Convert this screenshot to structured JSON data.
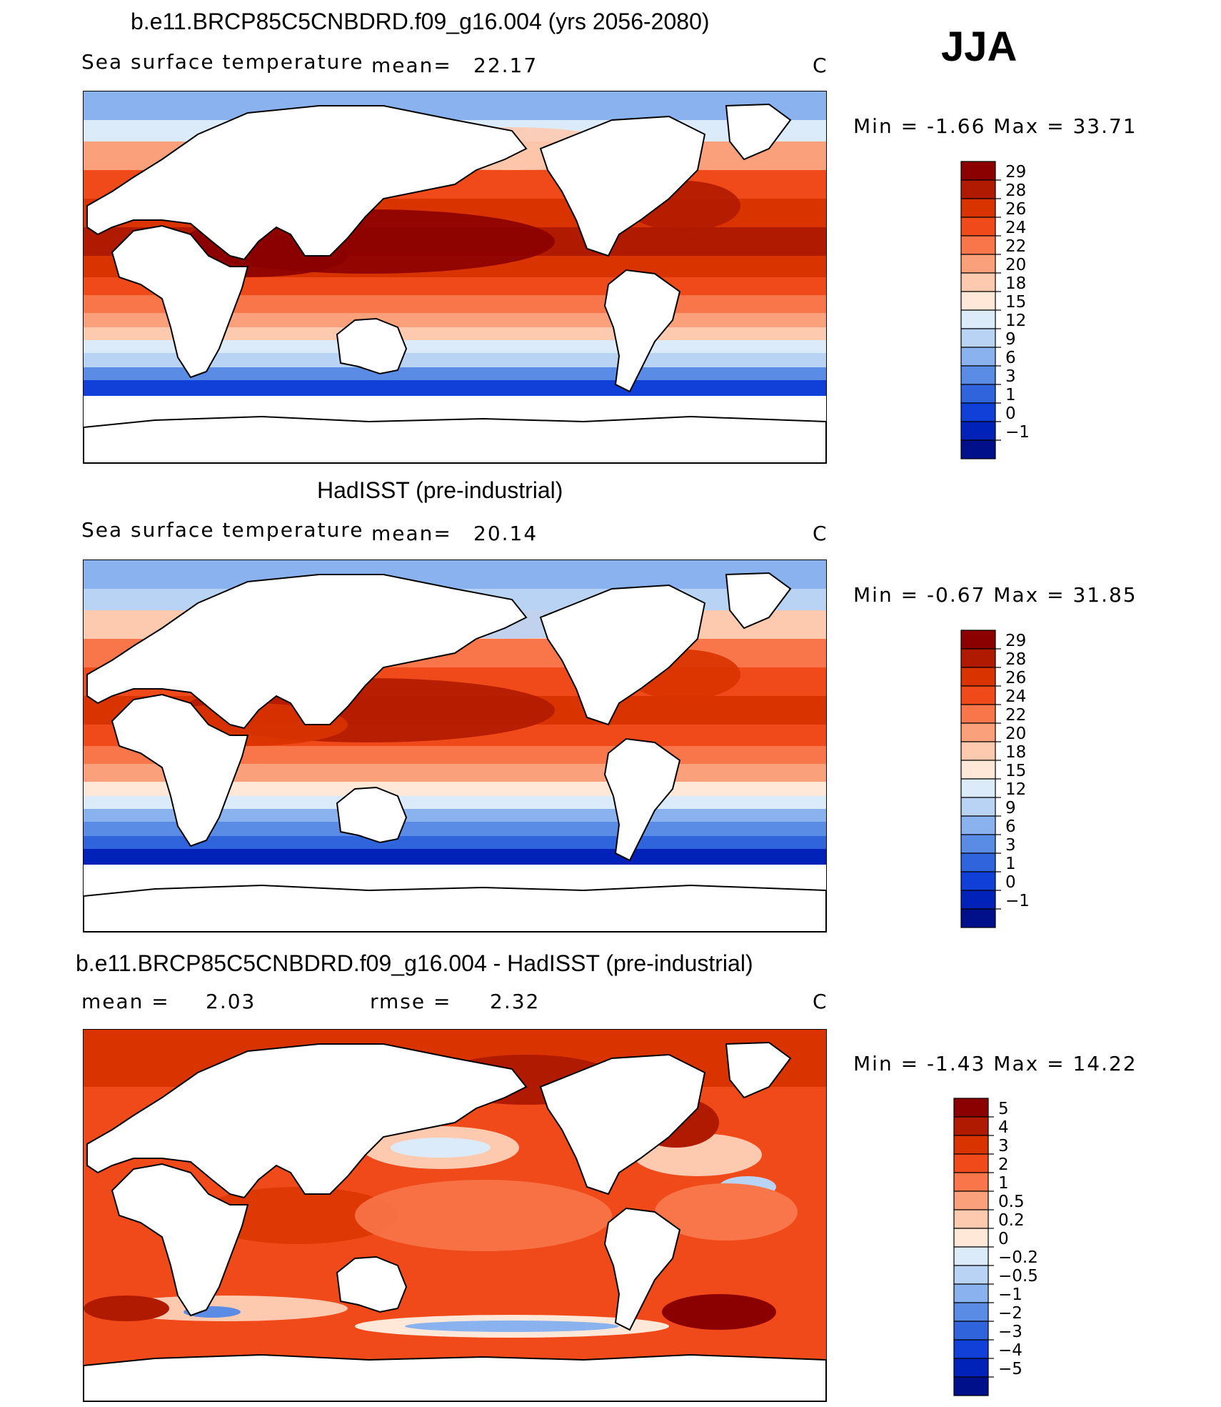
{
  "season": "JJA",
  "panels": [
    {
      "title": "b.e11.BRCP85C5CNBDRD.f09_g16.004 (yrs 2056-2080)",
      "left_label": "Sea surface temperature",
      "stat1_label": "mean=",
      "stat1_value": "22.17",
      "stat2_label": "",
      "stat2_value": "",
      "units": "C",
      "range_text": "Min = -1.66 Max = 33.71",
      "colorbar": {
        "labels": [
          "29",
          "28",
          "26",
          "24",
          "22",
          "20",
          "18",
          "15",
          "12",
          "9",
          "6",
          "3",
          "1",
          "0",
          "−1"
        ],
        "colors": [
          "#8B0000",
          "#B01A00",
          "#D93300",
          "#F04A1A",
          "#F8764A",
          "#FAA07A",
          "#FDCAB0",
          "#FFE8D8",
          "#DCEBFA",
          "#B9D3F5",
          "#8AB2EE",
          "#5A8CE6",
          "#3064DD",
          "#1040D8",
          "#0022B8",
          "#00108A"
        ]
      },
      "map_kind": "model"
    },
    {
      "title": "HadISST (pre-industrial)",
      "left_label": "Sea surface temperature",
      "stat1_label": "mean=",
      "stat1_value": "20.14",
      "stat2_label": "",
      "stat2_value": "",
      "units": "C",
      "range_text": "Min = -0.67 Max = 31.85",
      "colorbar": {
        "labels": [
          "29",
          "28",
          "26",
          "24",
          "22",
          "20",
          "18",
          "15",
          "12",
          "9",
          "6",
          "3",
          "1",
          "0",
          "−1"
        ],
        "colors": [
          "#8B0000",
          "#B01A00",
          "#D93300",
          "#F04A1A",
          "#F8764A",
          "#FAA07A",
          "#FDCAB0",
          "#FFE8D8",
          "#DCEBFA",
          "#B9D3F5",
          "#8AB2EE",
          "#5A8CE6",
          "#3064DD",
          "#1040D8",
          "#0022B8",
          "#00108A"
        ]
      },
      "map_kind": "obs"
    },
    {
      "title": "b.e11.BRCP85C5CNBDRD.f09_g16.004 - HadISST (pre-industrial)",
      "left_label": "",
      "stat1_label": "mean =",
      "stat1_value": "2.03",
      "stat2_label": "rmse =",
      "stat2_value": "2.32",
      "units": "C",
      "range_text": "Min = -1.43 Max = 14.22",
      "colorbar": {
        "labels": [
          "5",
          "4",
          "3",
          "2",
          "1",
          "0.5",
          "0.2",
          "0",
          "−0.2",
          "−0.5",
          "−1",
          "−2",
          "−3",
          "−4",
          "−5"
        ],
        "colors": [
          "#8B0000",
          "#B01A00",
          "#D93300",
          "#F04A1A",
          "#F8764A",
          "#FAA07A",
          "#FDCAB0",
          "#FFE8D8",
          "#DCEBFA",
          "#B9D3F5",
          "#8AB2EE",
          "#5A8CE6",
          "#3064DD",
          "#1040D8",
          "#0022B8",
          "#00108A"
        ]
      },
      "map_kind": "diff"
    }
  ]
}
